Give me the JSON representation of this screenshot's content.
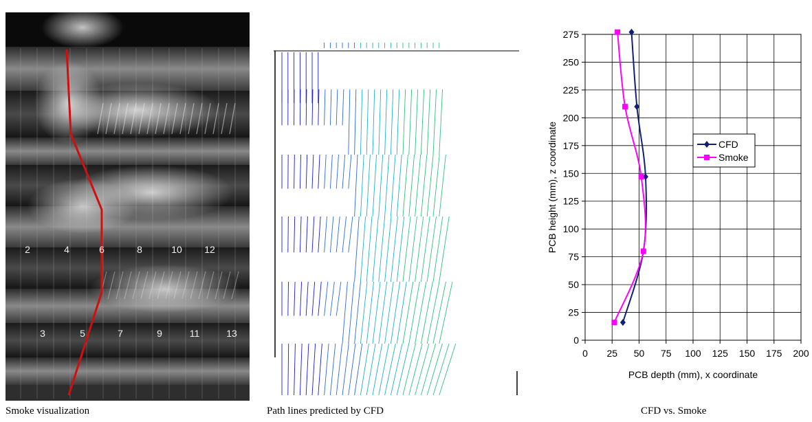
{
  "captions": {
    "smoke": "Smoke visualization",
    "cfd": "Path lines predicted by CFD",
    "chart": "CFD vs. Smoke"
  },
  "smoke_photo": {
    "slot_labels_row1": [
      "2",
      "4",
      "6",
      "8",
      "10",
      "12"
    ],
    "slot_labels_row2": [
      "3",
      "5",
      "7",
      "9",
      "11",
      "13"
    ],
    "trace_color": "#d01010"
  },
  "cfd_plot": {
    "pathline_colors": [
      "#1a1ad0",
      "#2a6ad8",
      "#20b0c8",
      "#30c080"
    ]
  },
  "chart_data": {
    "type": "scatter",
    "xlabel": "PCB depth (mm), x coordinate",
    "ylabel": "PCB height (mm), z coordinate",
    "xlim": [
      0,
      200
    ],
    "ylim": [
      0,
      275
    ],
    "xticks": [
      0,
      25,
      50,
      75,
      100,
      125,
      150,
      175,
      200
    ],
    "yticks": [
      0,
      25,
      50,
      75,
      100,
      125,
      150,
      175,
      200,
      225,
      250,
      275
    ],
    "grid": true,
    "legend": "right",
    "series": [
      {
        "name": "CFD",
        "color": "#10207a",
        "marker": "diamond",
        "x": [
          35,
          54,
          56,
          48,
          43
        ],
        "y": [
          16,
          80,
          147,
          210,
          277
        ]
      },
      {
        "name": "Smoke",
        "color": "#ff00ff",
        "marker": "square",
        "x": [
          27,
          54,
          52,
          37,
          30
        ],
        "y": [
          16,
          80,
          147,
          210,
          277
        ]
      }
    ]
  }
}
